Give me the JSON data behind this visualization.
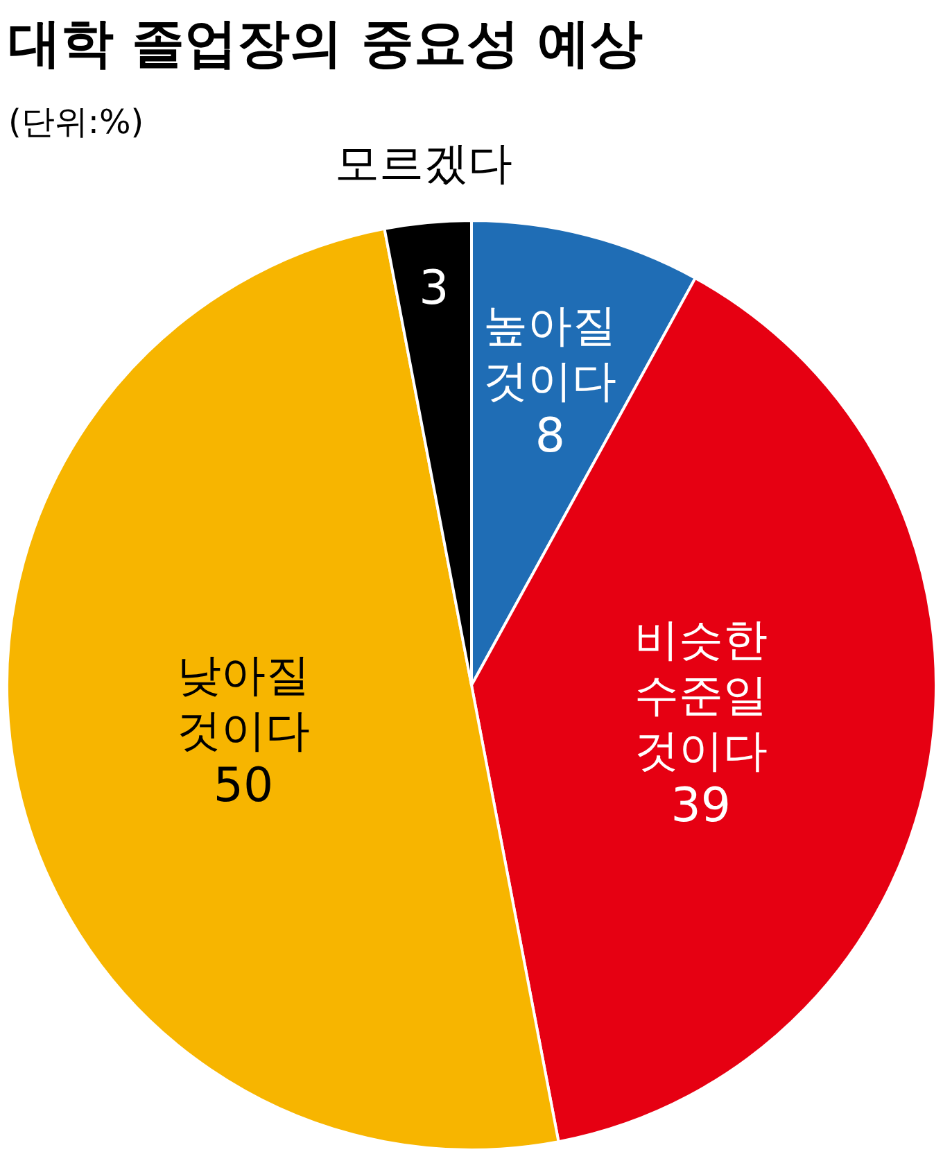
{
  "chart_data": {
    "type": "pie",
    "title": "대학 졸업장의 중요성 예상",
    "subtitle": "(단위:%)",
    "categories": [
      "높아질 것이다",
      "비슷한 수준일 것이다",
      "낮아질 것이다",
      "모르겠다"
    ],
    "values": [
      8,
      39,
      50,
      3
    ],
    "colors": [
      "#1f6db5",
      "#e60012",
      "#f7b500",
      "#000000"
    ],
    "data_labels": true
  }
}
